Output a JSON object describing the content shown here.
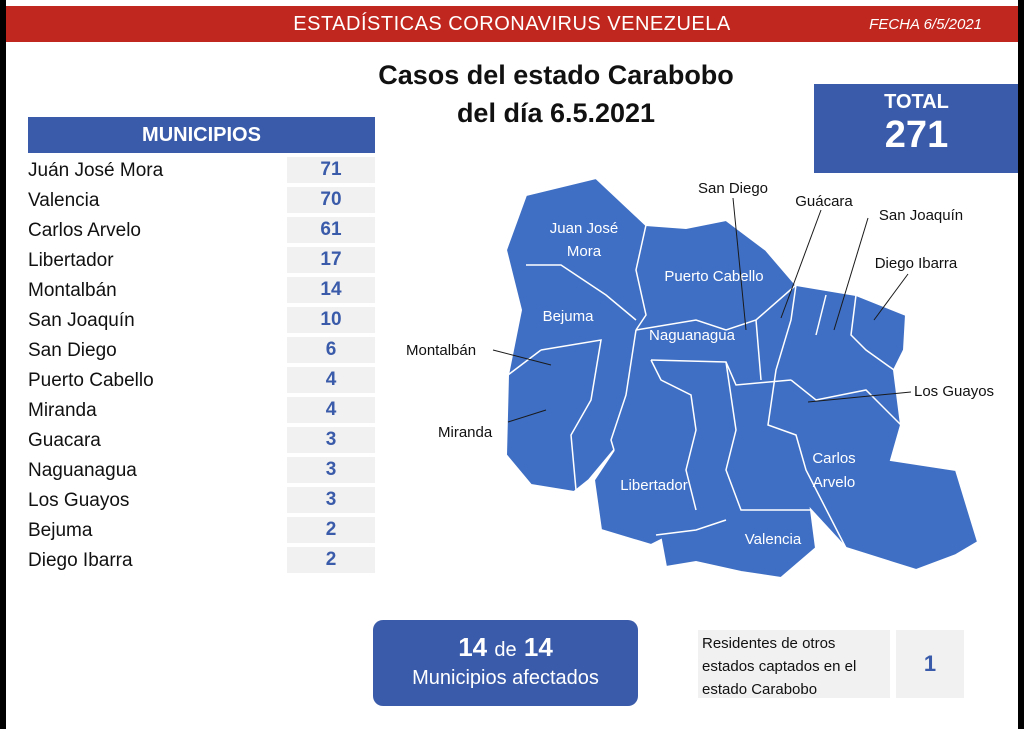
{
  "header": {
    "title": "ESTADÍSTICAS CORONAVIRUS VENEZUELA",
    "date": "FECHA 6/5/2021"
  },
  "title": {
    "line1": "Casos del estado Carabobo",
    "line2": "del día 6.5.2021"
  },
  "total": {
    "label": "TOTAL",
    "value": "271"
  },
  "municipios": {
    "header": "MUNICIPIOS",
    "rows": [
      {
        "name": "Juán José Mora",
        "value": "71"
      },
      {
        "name": "Valencia",
        "value": "70"
      },
      {
        "name": "Carlos Arvelo",
        "value": "61"
      },
      {
        "name": "Libertador",
        "value": "17"
      },
      {
        "name": "Montalbán",
        "value": "14"
      },
      {
        "name": "San Joaquín",
        "value": "10"
      },
      {
        "name": "San Diego",
        "value": "6"
      },
      {
        "name": "Puerto Cabello",
        "value": "4"
      },
      {
        "name": "Miranda",
        "value": "4"
      },
      {
        "name": "Guacara",
        "value": "3"
      },
      {
        "name": "Naguanagua",
        "value": "3"
      },
      {
        "name": "Los Guayos",
        "value": "3"
      },
      {
        "name": "Bejuma",
        "value": "2"
      },
      {
        "name": "Diego Ibarra",
        "value": "2"
      }
    ]
  },
  "map": {
    "fill_color": "#3f6fc4",
    "labels": {
      "juan_jose_mora_1": "Juan José",
      "juan_jose_mora_2": "Mora",
      "puerto_cabello": "Puerto Cabello",
      "bejuma": "Bejuma",
      "naguanagua": "Naguanagua",
      "libertador": "Libertador",
      "valencia": "Valencia",
      "carlos_arvelo_1": "Carlos",
      "carlos_arvelo_2": "Arvelo"
    },
    "callouts": {
      "san_diego": "San Diego",
      "guacara": "Guácara",
      "san_joaquin": "San Joaquín",
      "diego_ibarra": "Diego Ibarra",
      "los_guayos": "Los Guayos",
      "montalban": "Montalbán",
      "miranda": "Miranda"
    }
  },
  "affected": {
    "count": "14",
    "connector": "de",
    "total": "14",
    "label": "Municipios afectados"
  },
  "residents": {
    "line1": "Residentes de otros",
    "line2": "estados captados en el",
    "line3": "estado Carabobo",
    "value": "1"
  },
  "colors": {
    "header_red": "#c0281f",
    "accent_blue": "#3a5ba9",
    "map_blue": "#3f6fc4"
  }
}
